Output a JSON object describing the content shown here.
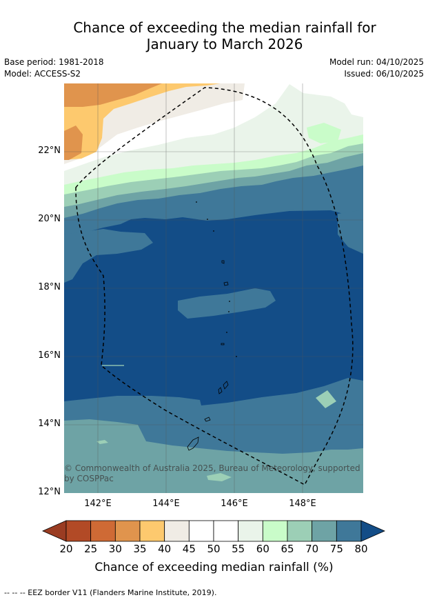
{
  "title_line1": "Chance of exceeding the median rainfall for",
  "title_line2": "January to March 2026",
  "base_period": "Base period: 1981-2018",
  "model": "Model: ACCESS-S2",
  "model_run": "Model run: 04/10/2025",
  "issued": "Issued: 06/10/2025",
  "copyright": "© Commonwealth of Australia 2025, Bureau of Meteorology, supported by COSPPac",
  "map": {
    "lat_labels": [
      "22°N",
      "20°N",
      "18°N",
      "16°N",
      "14°N",
      "12°N"
    ],
    "lon_labels": [
      "142°E",
      "144°E",
      "146°E",
      "148°E"
    ]
  },
  "colorbar": {
    "label": "Chance of exceeding median rainfall (%)",
    "ticks": [
      "20",
      "25",
      "30",
      "35",
      "40",
      "45",
      "50",
      "55",
      "60",
      "65",
      "70",
      "75",
      "80"
    ],
    "colors": [
      "#b24a26",
      "#cf6a35",
      "#e0944d",
      "#fdc96e",
      "#f0ece5",
      "#ffffff",
      "#ffffff",
      "#eaf4ea",
      "#c9fcc9",
      "#9ccfb6",
      "#6ea3a5",
      "#3f7899"
    ],
    "low_color": "#9a3c22",
    "high_color": "#134d87"
  },
  "footnote": "--  --  -- EEZ border V11 (Flanders Marine Institute, 2019)."
}
